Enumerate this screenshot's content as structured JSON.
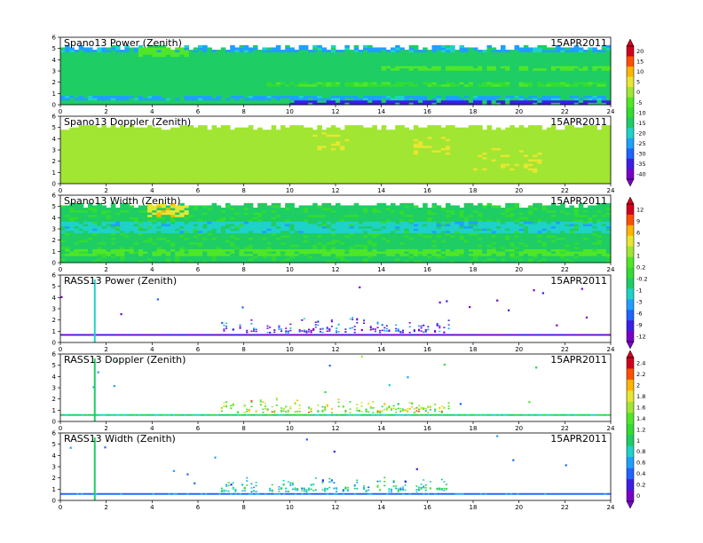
{
  "figure": {
    "date_label": "15APR2011"
  },
  "chart_data": [
    {
      "type": "heatmap",
      "title": "Spano13 Power (Zenith)",
      "xlim": [
        0,
        24
      ],
      "ylim": [
        0,
        6
      ],
      "x_ticks": [
        "0",
        "2",
        "4",
        "6",
        "8",
        "10",
        "12",
        "14",
        "16",
        "18",
        "20",
        "22",
        "24"
      ],
      "y_ticks": [
        "0",
        "1",
        "2",
        "3",
        "4",
        "5",
        "6"
      ],
      "data_top_km": 5.3,
      "base_value": -15,
      "features": [
        {
          "x": [
            0,
            24
          ],
          "y": [
            0.35,
            0.8
          ],
          "value": -22
        },
        {
          "x": [
            0,
            24
          ],
          "y": [
            4.6,
            5.3
          ],
          "value": -22
        },
        {
          "x": [
            10,
            24
          ],
          "y": [
            0.0,
            0.25
          ],
          "value": -33
        },
        {
          "x": [
            3.5,
            5.5
          ],
          "y": [
            4.2,
            5.0
          ],
          "value": -5
        },
        {
          "x": [
            14,
            24
          ],
          "y": [
            3.0,
            3.4
          ],
          "value": -5
        },
        {
          "x": [
            9,
            24
          ],
          "y": [
            1.5,
            1.9
          ],
          "value": -8
        }
      ],
      "colorbar_ref": 0
    },
    {
      "type": "heatmap",
      "title": "Spano13 Doppler (Zenith)",
      "xlim": [
        0,
        24
      ],
      "ylim": [
        0,
        6
      ],
      "x_ticks": [
        "0",
        "2",
        "4",
        "6",
        "8",
        "10",
        "12",
        "14",
        "16",
        "18",
        "20",
        "22",
        "24"
      ],
      "y_ticks": [
        "0",
        "1",
        "2",
        "3",
        "4",
        "5",
        "6"
      ],
      "data_top_km": 5.2,
      "base_value": 0.9,
      "features": [
        {
          "x": [
            15.5,
            17
          ],
          "y": [
            2.5,
            4.0
          ],
          "value": 1.3
        },
        {
          "x": [
            11,
            12.5
          ],
          "y": [
            3.0,
            4.5
          ],
          "value": 1.2
        },
        {
          "x": [
            18,
            21
          ],
          "y": [
            1.0,
            3.0
          ],
          "value": 1.15
        }
      ],
      "colorbar_ref": 0
    },
    {
      "type": "heatmap",
      "title": "Spano13 Width (Zenith)",
      "xlim": [
        0,
        24
      ],
      "ylim": [
        0,
        6
      ],
      "x_ticks": [
        "0",
        "2",
        "4",
        "6",
        "8",
        "10",
        "12",
        "14",
        "16",
        "18",
        "20",
        "22",
        "24"
      ],
      "y_ticks": [
        "0",
        "1",
        "2",
        "3",
        "4",
        "5",
        "6"
      ],
      "data_top_km": 5.3,
      "base_value": -1,
      "features": [
        {
          "x": [
            3.8,
            5.5
          ],
          "y": [
            4.0,
            5.2
          ],
          "value": 6
        },
        {
          "x": [
            0,
            24
          ],
          "y": [
            0.6,
            1.2
          ],
          "value": 2
        },
        {
          "x": [
            0,
            24
          ],
          "y": [
            2.5,
            3.5
          ],
          "value": -4
        }
      ],
      "colorbar_ref": 1
    },
    {
      "type": "heatmap",
      "title": "RASS13 Power (Zenith)",
      "xlim": [
        0,
        24
      ],
      "ylim": [
        0,
        6
      ],
      "x_ticks": [
        "0",
        "2",
        "4",
        "6",
        "8",
        "10",
        "12",
        "14",
        "16",
        "18",
        "20",
        "22",
        "24"
      ],
      "y_ticks": [
        "0",
        "1",
        "2",
        "3",
        "4",
        "5",
        "6"
      ],
      "baseline_km": 0.6,
      "base_value": -11,
      "activity_x": [
        7,
        17
      ],
      "activity_top_km": 2.0,
      "spike_x": 1.5,
      "colorbar_ref": 1
    },
    {
      "type": "heatmap",
      "title": "RASS13 Doppler (Zenith)",
      "xlim": [
        0,
        24
      ],
      "ylim": [
        0,
        6
      ],
      "x_ticks": [
        "0",
        "2",
        "4",
        "6",
        "8",
        "10",
        "12",
        "14",
        "16",
        "18",
        "20",
        "22",
        "24"
      ],
      "y_ticks": [
        "0",
        "1",
        "2",
        "3",
        "4",
        "5",
        "6"
      ],
      "baseline_km": 0.5,
      "base_value": 1.0,
      "activity_x": [
        7,
        17
      ],
      "activity_top_km": 2.0,
      "spike_x": 1.5,
      "colorbar_ref": 2
    },
    {
      "type": "heatmap",
      "title": "RASS13 Width (Zenith)",
      "xlim": [
        0,
        24
      ],
      "ylim": [
        0,
        6
      ],
      "x_ticks": [
        "0",
        "2",
        "4",
        "6",
        "8",
        "10",
        "12",
        "14",
        "16",
        "18",
        "20",
        "22",
        "24"
      ],
      "y_ticks": [
        "0",
        "1",
        "2",
        "3",
        "4",
        "5",
        "6"
      ],
      "baseline_km": 0.5,
      "base_value": 0.5,
      "activity_x": [
        7,
        17
      ],
      "activity_top_km": 2.0,
      "spike_x": 1.5,
      "colorbar_ref": 2
    }
  ],
  "colorbars": [
    {
      "labels": [
        "20",
        "15",
        "10",
        "5",
        "0",
        "-5",
        "-10",
        "-15",
        "-20",
        "-25",
        "-30",
        "-35",
        "-40"
      ],
      "min": -40,
      "max": 20,
      "colors": [
        "#7a00c8",
        "#3c1ee6",
        "#1e64ff",
        "#1ea0ff",
        "#1ed2c8",
        "#1ecd64",
        "#32dc32",
        "#50e628",
        "#a0e632",
        "#e6e632",
        "#ffb400",
        "#ff5000",
        "#d2001e"
      ]
    },
    {
      "labels": [
        "12",
        "9",
        "6",
        "3",
        "1",
        "0.2",
        "-0.2",
        "-1",
        "-3",
        "-6",
        "-9",
        "-12"
      ],
      "min": -12,
      "max": 12,
      "colors": [
        "#7a00c8",
        "#3c1ee6",
        "#1e64ff",
        "#1ea0ff",
        "#1ed2c8",
        "#1ecd64",
        "#32dc32",
        "#50e628",
        "#a0e632",
        "#e6e632",
        "#ffb400",
        "#ff5000",
        "#d2001e"
      ]
    },
    {
      "labels": [
        "2.4",
        "2.2",
        "2",
        "1.8",
        "1.6",
        "1.4",
        "1.2",
        "1",
        "0.8",
        "0.6",
        "0.4",
        "0.2",
        "0"
      ],
      "min": 0,
      "max": 2.4,
      "colors": [
        "#7a00c8",
        "#3c1ee6",
        "#1e64ff",
        "#1ea0ff",
        "#1ed2c8",
        "#1ecd64",
        "#32dc32",
        "#50e628",
        "#a0e632",
        "#e6e632",
        "#ffb400",
        "#ff5000",
        "#d2001e"
      ]
    }
  ]
}
